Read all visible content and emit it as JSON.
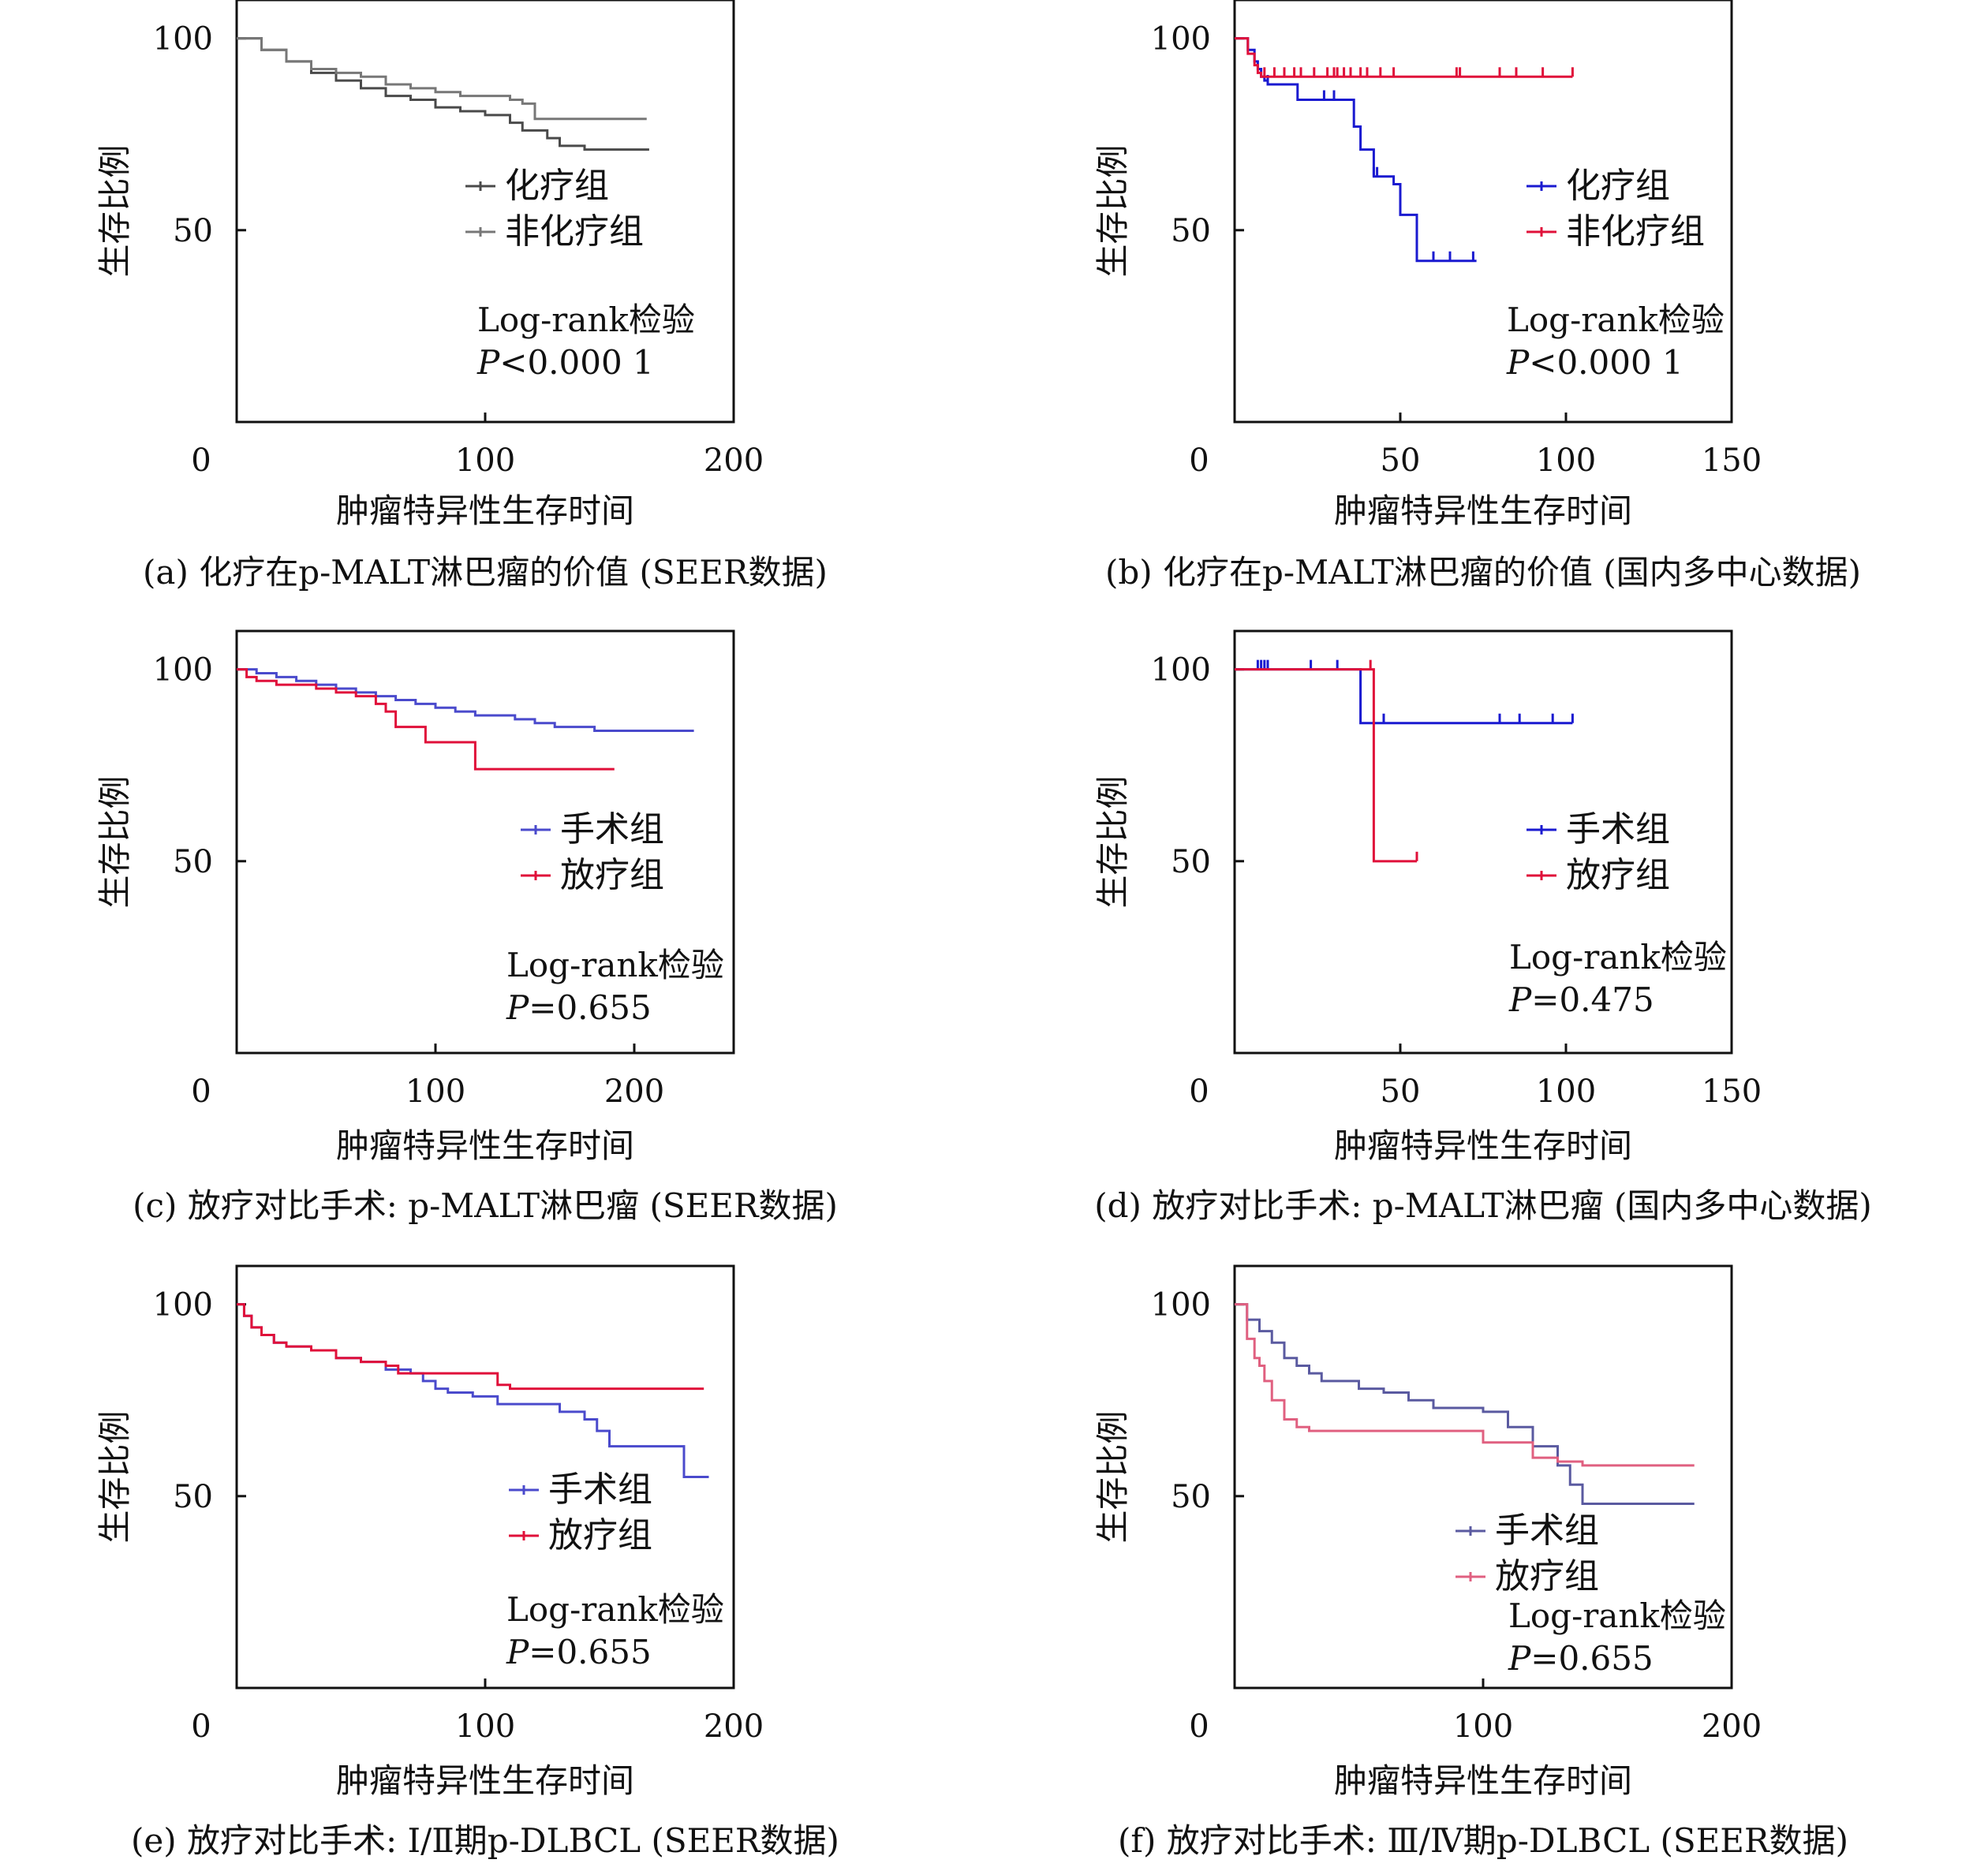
{
  "chart_data": [
    {
      "type": "line",
      "panel": "a",
      "caption": "(a) 化疗在p-MALT淋巴瘤的价值 (SEER数据)",
      "xlabel": "肿瘤特异性生存时间",
      "ylabel": "生存比例",
      "xlim": [
        0,
        200
      ],
      "ylim": [
        0,
        110
      ],
      "xticks": [
        "0",
        "100",
        "200"
      ],
      "yticks": [
        "50",
        "100"
      ],
      "legend_position": "center-right",
      "stat_test": "Log-rank检验",
      "p_value": "<0.000 1",
      "series": [
        {
          "name": "化疗组",
          "color": "#4a4a4a",
          "x": [
            0,
            10,
            20,
            30,
            40,
            50,
            60,
            70,
            80,
            90,
            100,
            110,
            115,
            125,
            130,
            140,
            166
          ],
          "y": [
            100,
            97,
            94,
            91,
            89,
            87,
            85,
            84,
            82,
            81,
            80,
            78,
            76,
            74,
            72,
            71,
            71
          ],
          "censored_x": []
        },
        {
          "name": "非化疗组",
          "color": "#777777",
          "x": [
            0,
            10,
            20,
            30,
            40,
            50,
            60,
            70,
            80,
            90,
            100,
            110,
            115,
            120,
            165
          ],
          "y": [
            100,
            97,
            94,
            92,
            91,
            90,
            88,
            87,
            86,
            85,
            85,
            84,
            83,
            79,
            79
          ],
          "censored_x": []
        }
      ]
    },
    {
      "type": "line",
      "panel": "b",
      "caption": "(b) 化疗在p-MALT淋巴瘤的价值 (国内多中心数据)",
      "xlabel": "肿瘤特异性生存时间",
      "ylabel": "生存比例",
      "xlim": [
        0,
        150
      ],
      "ylim": [
        0,
        110
      ],
      "xticks": [
        "0",
        "50",
        "100",
        "150"
      ],
      "yticks": [
        "50",
        "100"
      ],
      "legend_position": "center-right",
      "stat_test": "Log-rank检验",
      "p_value": "<0.000 1",
      "series": [
        {
          "name": "化疗组",
          "color": "#1a1ad0",
          "x": [
            0,
            4,
            6,
            7,
            8,
            9,
            10,
            11,
            13,
            19,
            25,
            30,
            34,
            36,
            38,
            39,
            42,
            44,
            48,
            50,
            52,
            55,
            73
          ],
          "y": [
            100,
            97,
            94,
            92,
            90,
            89,
            88,
            88,
            88,
            84,
            84,
            84,
            84,
            77,
            71,
            71,
            64,
            64,
            62,
            54,
            54,
            42,
            42
          ],
          "censored_x": [
            10,
            27,
            30,
            42,
            43,
            60,
            65,
            72
          ]
        },
        {
          "name": "非化疗组",
          "color": "#e0103a",
          "x": [
            0,
            4,
            6,
            7,
            8,
            102
          ],
          "y": [
            100,
            96,
            93,
            91,
            90,
            90
          ],
          "censored_x": [
            9,
            12,
            15,
            18,
            20,
            24,
            28,
            30,
            31,
            33,
            35,
            38,
            40,
            44,
            48,
            67,
            68,
            80,
            85,
            93,
            102
          ]
        }
      ]
    },
    {
      "type": "line",
      "panel": "c",
      "caption": "(c) 放疗对比手术: p-MALT淋巴瘤 (SEER数据)",
      "xlabel": "肿瘤特异性生存时间",
      "ylabel": "生存比例",
      "xlim": [
        0,
        250
      ],
      "ylim": [
        0,
        110
      ],
      "xticks": [
        "0",
        "100",
        "200"
      ],
      "yticks": [
        "50",
        "100"
      ],
      "legend_position": "center-right",
      "stat_test": "Log-rank检验",
      "p_value": "=0.655",
      "series": [
        {
          "name": "手术组",
          "color": "#4a4acc",
          "x": [
            0,
            10,
            20,
            30,
            40,
            50,
            60,
            70,
            80,
            90,
            100,
            110,
            120,
            130,
            140,
            150,
            160,
            170,
            180,
            190,
            200,
            215,
            230
          ],
          "y": [
            100,
            99,
            98,
            97,
            96,
            95,
            94,
            93,
            92,
            91,
            90,
            89,
            88,
            88,
            87,
            86,
            85,
            85,
            84,
            84,
            84,
            84,
            84
          ],
          "censored_x": []
        },
        {
          "name": "放疗组",
          "color": "#e0103a",
          "x": [
            0,
            5,
            10,
            20,
            30,
            40,
            50,
            60,
            70,
            75,
            80,
            85,
            95,
            100,
            110,
            120,
            150,
            190
          ],
          "y": [
            100,
            98,
            97,
            96,
            96,
            95,
            94,
            93,
            91,
            89,
            85,
            85,
            81,
            81,
            81,
            74,
            74,
            74
          ],
          "censored_x": []
        }
      ]
    },
    {
      "type": "line",
      "panel": "d",
      "caption": "(d) 放疗对比手术: p-MALT淋巴瘤 (国内多中心数据)",
      "xlabel": "肿瘤特异性生存时间",
      "ylabel": "生存比例",
      "xlim": [
        0,
        150
      ],
      "ylim": [
        0,
        110
      ],
      "xticks": [
        "0",
        "50",
        "100",
        "150"
      ],
      "yticks": [
        "50",
        "100"
      ],
      "legend_position": "center-right",
      "stat_test": "Log-rank检验",
      "p_value": "=0.475",
      "series": [
        {
          "name": "手术组",
          "color": "#1a1ad0",
          "x": [
            0,
            38,
            38,
            102
          ],
          "y": [
            100,
            100,
            86,
            86
          ],
          "censored_x": [
            7,
            8,
            9,
            10,
            23,
            31,
            45,
            80,
            86,
            96,
            102
          ]
        },
        {
          "name": "放疗组",
          "color": "#e0103a",
          "x": [
            0,
            41,
            42,
            55
          ],
          "y": [
            100,
            100,
            50,
            50
          ],
          "censored_x": [
            41,
            55
          ]
        }
      ]
    },
    {
      "type": "line",
      "panel": "e",
      "caption": "(e) 放疗对比手术: Ⅰ/Ⅱ期p-DLBCL (SEER数据)",
      "xlabel": "肿瘤特异性生存时间",
      "ylabel": "生存比例",
      "xlim": [
        0,
        200
      ],
      "ylim": [
        0,
        110
      ],
      "xticks": [
        "0",
        "100",
        "200"
      ],
      "yticks": [
        "50",
        "100"
      ],
      "legend_position": "center-right",
      "stat_test": "Log-rank检验",
      "p_value": "=0.655",
      "series": [
        {
          "name": "手术组",
          "color": "#4a4acc",
          "x": [
            0,
            3,
            6,
            10,
            15,
            20,
            30,
            40,
            50,
            60,
            70,
            75,
            80,
            85,
            95,
            100,
            105,
            120,
            130,
            140,
            145,
            150,
            178,
            180,
            190
          ],
          "y": [
            100,
            97,
            94,
            92,
            90,
            89,
            88,
            86,
            85,
            83,
            82,
            80,
            78,
            77,
            76,
            76,
            74,
            74,
            72,
            70,
            67,
            63,
            63,
            55,
            55
          ],
          "censored_x": []
        },
        {
          "name": "放疗组",
          "color": "#e0103a",
          "x": [
            0,
            3,
            6,
            10,
            15,
            20,
            30,
            40,
            50,
            60,
            65,
            70,
            80,
            100,
            105,
            110,
            188
          ],
          "y": [
            100,
            97,
            94,
            92,
            90,
            89,
            88,
            86,
            85,
            84,
            82,
            82,
            82,
            82,
            79,
            78,
            78
          ],
          "censored_x": []
        }
      ]
    },
    {
      "type": "line",
      "panel": "f",
      "caption": "(f) 放疗对比手术: Ⅲ/Ⅳ期p-DLBCL (SEER数据)",
      "xlabel": "肿瘤特异性生存时间",
      "ylabel": "生存比例",
      "xlim": [
        0,
        200
      ],
      "ylim": [
        0,
        110
      ],
      "xticks": [
        "0",
        "100",
        "200"
      ],
      "yticks": [
        "50",
        "100"
      ],
      "legend_position": "lower-right",
      "stat_test": "Log-rank检验",
      "p_value": "=0.655",
      "series": [
        {
          "name": "手术组",
          "color": "#5a5aa0",
          "x": [
            0,
            5,
            10,
            15,
            20,
            25,
            30,
            35,
            40,
            50,
            60,
            70,
            80,
            90,
            95,
            100,
            110,
            120,
            130,
            135,
            140,
            150,
            165,
            170,
            185
          ],
          "y": [
            100,
            96,
            93,
            90,
            86,
            84,
            82,
            80,
            80,
            78,
            77,
            75,
            73,
            73,
            73,
            72,
            68,
            63,
            58,
            53,
            48,
            48,
            48,
            48,
            48
          ],
          "censored_x": []
        },
        {
          "name": "放疗组",
          "color": "#e06080",
          "x": [
            0,
            5,
            8,
            10,
            12,
            15,
            20,
            25,
            30,
            40,
            50,
            60,
            70,
            80,
            90,
            100,
            110,
            120,
            130,
            140,
            150,
            185
          ],
          "y": [
            100,
            91,
            86,
            84,
            80,
            75,
            70,
            68,
            67,
            67,
            67,
            67,
            67,
            67,
            67,
            64,
            64,
            60,
            59,
            58,
            58,
            58
          ],
          "censored_x": []
        }
      ]
    }
  ]
}
